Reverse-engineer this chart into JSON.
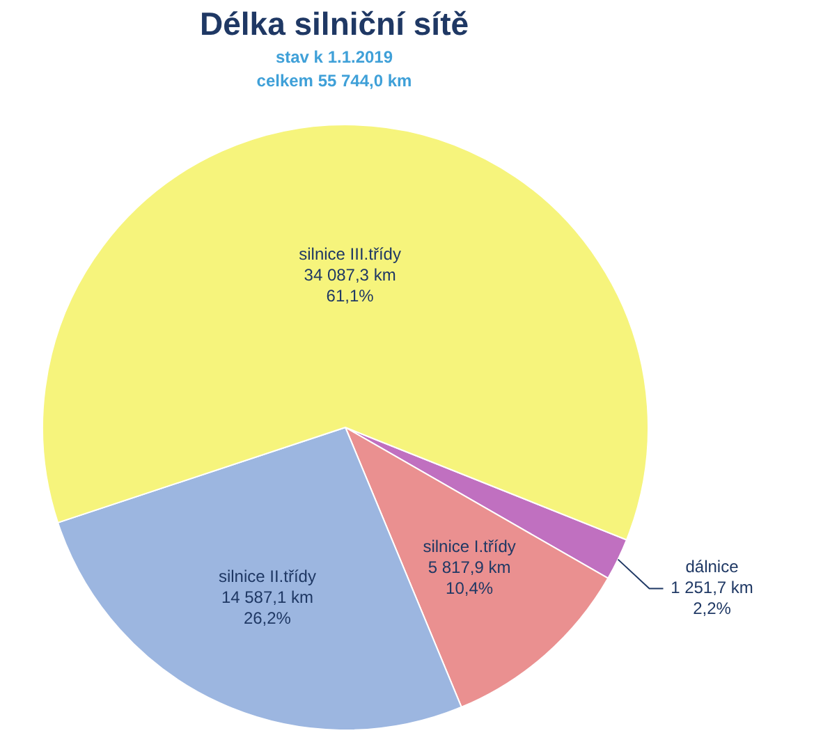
{
  "chart_data": {
    "type": "pie",
    "title": "Délka silniční sítě",
    "subtitle": "stav k 1.1.2019",
    "annotations": [
      "celkem 55 744,0 km"
    ],
    "categories": [
      "dálnice",
      "silnice I.třídy",
      "silnice II.třídy",
      "silnice III.třídy"
    ],
    "values": [
      1251.7,
      5817.9,
      14587.1,
      34087.3
    ],
    "value_labels": [
      "1 251,7 km\n2,2%",
      "5 817,9 km\n10,4%",
      "14 587,1 km\n26,2%",
      "34 087,3 km\n61,1%"
    ],
    "colors": [
      "#c070c0",
      "#ea9090",
      "#9cb6e0",
      "#f6f47c"
    ],
    "legend": false
  }
}
